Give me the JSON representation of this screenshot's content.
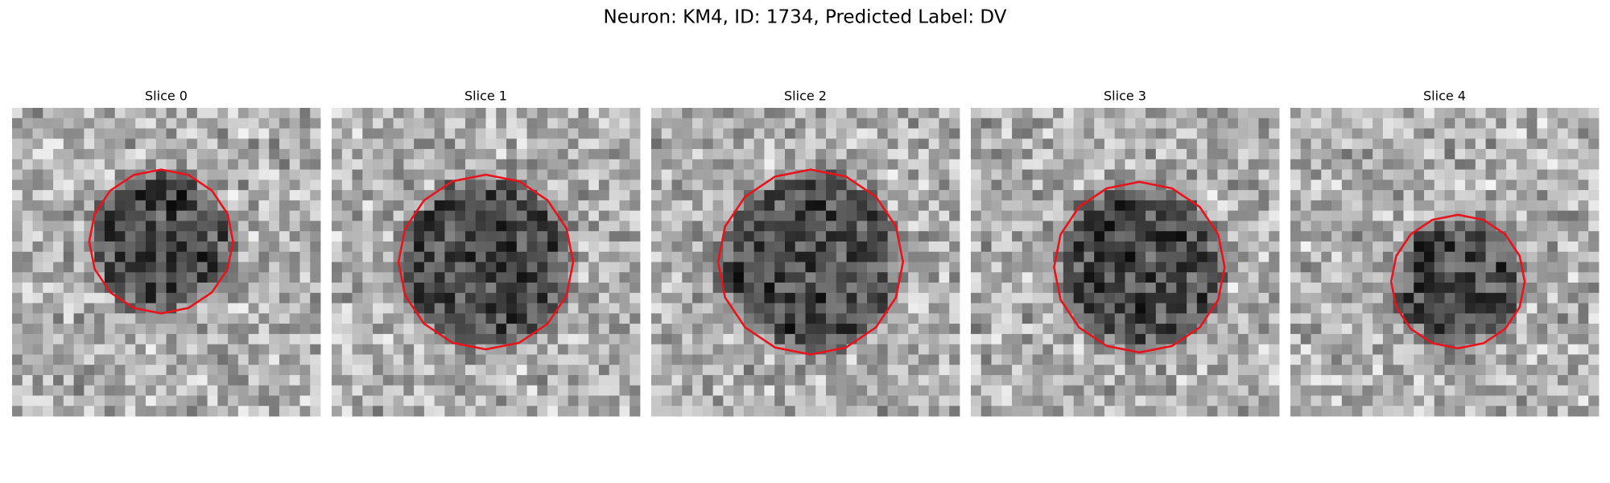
{
  "title": "Neuron: KM4, ID: 1734, Predicted Label: DV",
  "panels": [
    {
      "title": "Slice 0"
    },
    {
      "title": "Slice 1"
    },
    {
      "title": "Slice 2"
    },
    {
      "title": "Slice 3"
    },
    {
      "title": "Slice 4"
    }
  ]
}
